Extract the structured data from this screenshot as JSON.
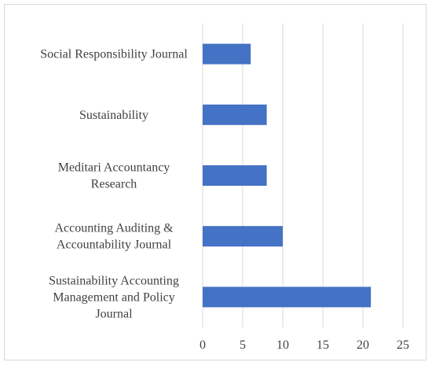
{
  "chart_data": {
    "type": "bar",
    "orientation": "horizontal",
    "categories": [
      "Social Responsibility Journal",
      "Sustainability",
      "Meditari Accountancy Research",
      "Accounting Auditing & Accountability Journal",
      "Sustainability Accounting Management and Policy Journal"
    ],
    "category_lines": [
      [
        "Social Responsibility Journal"
      ],
      [
        "Sustainability"
      ],
      [
        "Meditari Accountancy",
        "Research"
      ],
      [
        "Accounting Auditing &",
        "Accountability Journal"
      ],
      [
        "Sustainability Accounting",
        "Management and Policy",
        "Journal"
      ]
    ],
    "values": [
      6,
      8,
      8,
      10,
      21
    ],
    "xlim": [
      0,
      25
    ],
    "xticks": [
      "0",
      "5",
      "10",
      "15",
      "20",
      "25"
    ],
    "title": "",
    "xlabel": "",
    "ylabel": "",
    "grid": "vertical",
    "legend": "none",
    "bar_color": "#4472c4"
  }
}
